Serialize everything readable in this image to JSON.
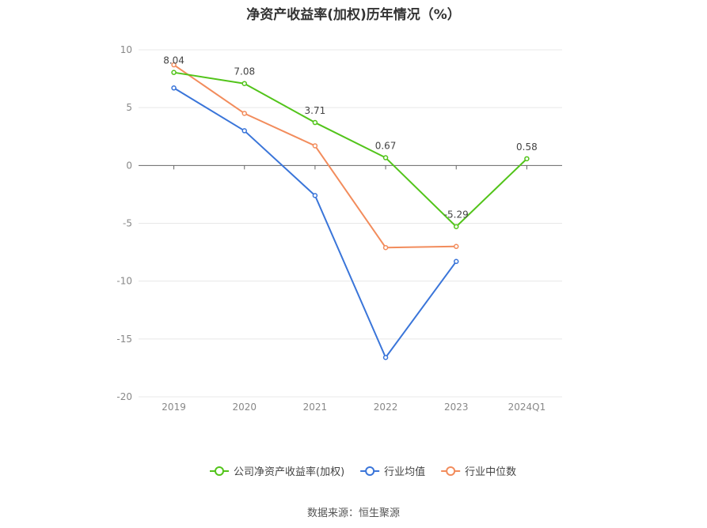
{
  "title": "净资产收益率(加权)历年情况（%）",
  "source": "数据来源：恒生聚源",
  "chart_data": {
    "type": "line",
    "title": "净资产收益率(加权)历年情况（%）",
    "categories": [
      "2019",
      "2020",
      "2021",
      "2022",
      "2023",
      "2024Q1"
    ],
    "ylim": [
      -20,
      10
    ],
    "yticks": [
      10,
      5,
      0,
      -5,
      -10,
      -15,
      -20
    ],
    "grid": true,
    "legend_position": "bottom",
    "series": [
      {
        "name": "公司净资产收益率(加权)",
        "color": "#52c41a",
        "values": [
          8.04,
          7.08,
          3.71,
          0.67,
          -5.29,
          0.58
        ],
        "labels": [
          "8.04",
          "7.08",
          "3.71",
          "0.67",
          "-5.29",
          "0.58"
        ]
      },
      {
        "name": "行业均值",
        "color": "#3a75d9",
        "values": [
          6.7,
          3.0,
          -2.6,
          -16.6,
          -8.3,
          null
        ]
      },
      {
        "name": "行业中位数",
        "color": "#f28c5c",
        "values": [
          8.7,
          4.5,
          1.7,
          -7.1,
          -7.0,
          null
        ]
      }
    ]
  }
}
